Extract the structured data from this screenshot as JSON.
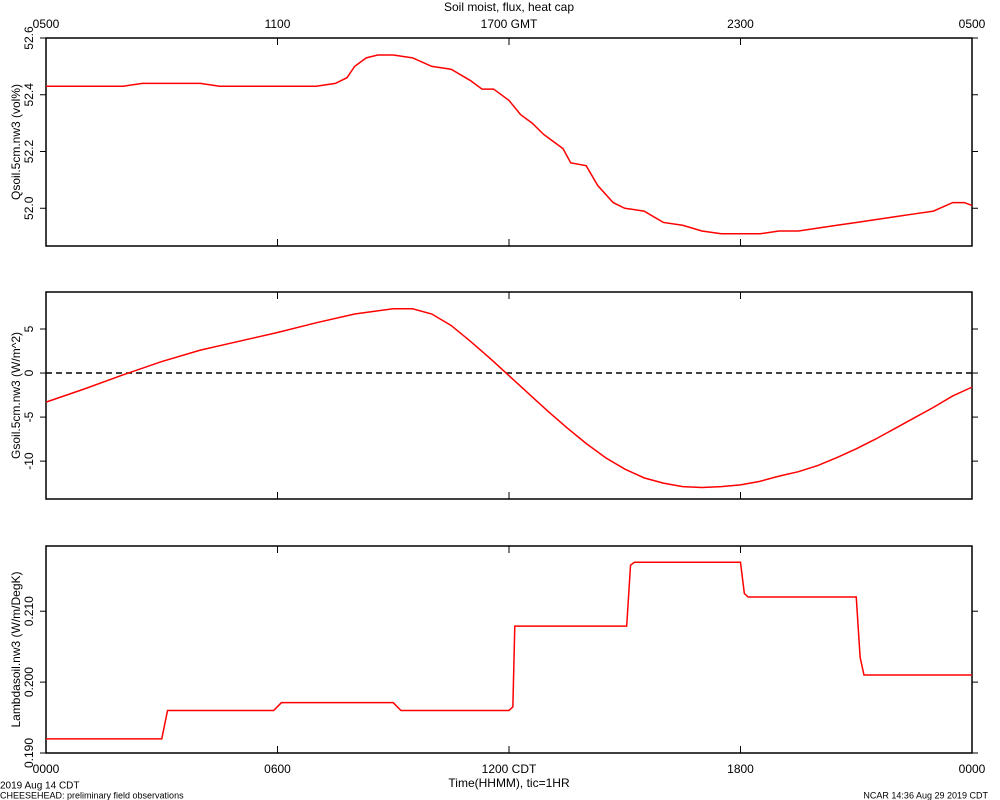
{
  "chart_data": [
    {
      "type": "line",
      "title": "Soil moist, flux, heat cap",
      "ylabel": "Qsoil.5cm.nw3 (vol%)",
      "xlim": [
        0,
        24
      ],
      "x2ticks": [
        {
          "value": 0,
          "label": "0500"
        },
        {
          "value": 6,
          "label": "1100"
        },
        {
          "value": 12,
          "label": "1700 GMT"
        },
        {
          "value": 18,
          "label": "2300"
        },
        {
          "value": 24,
          "label": "0500"
        }
      ],
      "ylim": [
        51.867,
        52.6
      ],
      "yticks": [
        {
          "value": 52,
          "label": "52.0"
        },
        52.2,
        52.4,
        52.6
      ],
      "series": [
        {
          "color": "#ff0000",
          "x": [
            0,
            1,
            2,
            2.5,
            3,
            4,
            4.5,
            5,
            6,
            7,
            7.5,
            7.8,
            8.0,
            8.3,
            8.6,
            9,
            9.5,
            10,
            10.5,
            11,
            11.3,
            11.6,
            12,
            12.3,
            12.6,
            12.9,
            13.1,
            13.4,
            13.6,
            14,
            14.3,
            14.7,
            15,
            15.5,
            16,
            16.5,
            17,
            17.5,
            18,
            18.5,
            19,
            19.5,
            20,
            20.5,
            21,
            21.5,
            22,
            22.5,
            23,
            23.5,
            23.8,
            24
          ],
          "values": [
            52.43,
            52.43,
            52.43,
            52.44,
            52.44,
            52.44,
            52.43,
            52.43,
            52.43,
            52.43,
            52.44,
            52.46,
            52.5,
            52.53,
            52.54,
            52.54,
            52.53,
            52.5,
            52.49,
            52.45,
            52.42,
            52.42,
            52.38,
            52.33,
            52.3,
            52.26,
            52.24,
            52.21,
            52.16,
            52.15,
            52.08,
            52.02,
            52.0,
            51.99,
            51.95,
            51.94,
            51.92,
            51.91,
            51.91,
            51.91,
            51.92,
            51.92,
            51.93,
            51.94,
            51.95,
            51.96,
            51.97,
            51.98,
            51.99,
            52.02,
            52.02,
            52.01
          ]
        }
      ]
    },
    {
      "type": "line",
      "ylabel": "Gsoil.5cm.nw3 (W/m^2)",
      "xlim": [
        0,
        24
      ],
      "ylim": [
        -14.3,
        9.2
      ],
      "yticks": [
        -10,
        -5,
        0,
        5
      ],
      "zero_line": true,
      "series": [
        {
          "color": "#ff0000",
          "x": [
            0,
            1,
            2,
            3,
            4,
            5,
            6,
            7,
            8,
            9,
            9.5,
            10,
            10.5,
            11,
            11.5,
            12,
            12.5,
            13,
            13.5,
            14,
            14.5,
            15,
            15.5,
            16,
            16.5,
            17,
            17.5,
            18,
            18.5,
            19,
            19.5,
            20,
            20.5,
            21,
            21.5,
            22,
            22.5,
            23,
            23.5,
            24
          ],
          "values": [
            -3.3,
            -1.8,
            -0.2,
            1.3,
            2.6,
            3.6,
            4.6,
            5.7,
            6.7,
            7.3,
            7.3,
            6.7,
            5.4,
            3.6,
            1.7,
            -0.3,
            -2.3,
            -4.3,
            -6.2,
            -8.0,
            -9.6,
            -10.9,
            -11.9,
            -12.5,
            -12.9,
            -13.0,
            -12.9,
            -12.7,
            -12.3,
            -11.7,
            -11.2,
            -10.5,
            -9.6,
            -8.6,
            -7.5,
            -6.3,
            -5.1,
            -3.9,
            -2.6,
            -1.6
          ]
        }
      ]
    },
    {
      "type": "line",
      "ylabel": "Lambdasoil.nw3 (W/m/DegK)",
      "xlabel": "Time(HHMM), tic=1HR",
      "xlim": [
        0,
        24
      ],
      "xticks": [
        {
          "value": 0,
          "label": "0000"
        },
        {
          "value": 6,
          "label": "0600"
        },
        {
          "value": 12,
          "label": "1200 CDT"
        },
        {
          "value": 18,
          "label": "1800"
        },
        {
          "value": 24,
          "label": "0000"
        }
      ],
      "ylim": [
        0.19,
        0.2192
      ],
      "yticks": [
        {
          "value": 0.19,
          "label": "0.190"
        },
        {
          "value": 0.2,
          "label": "0.200"
        },
        {
          "value": 0.21,
          "label": "0.210"
        }
      ],
      "series": [
        {
          "color": "#ff0000",
          "x": [
            0,
            3.0,
            3.15,
            5.9,
            6.1,
            9.0,
            9.2,
            12.0,
            12.1,
            12.15,
            15.05,
            15.15,
            15.25,
            18.0,
            18.1,
            18.2,
            21.0,
            21.1,
            21.2,
            24
          ],
          "values": [
            0.192,
            0.192,
            0.196,
            0.196,
            0.1971,
            0.1971,
            0.196,
            0.196,
            0.1965,
            0.2079,
            0.2079,
            0.2165,
            0.2169,
            0.2169,
            0.2125,
            0.212,
            0.212,
            0.2035,
            0.201,
            0.201
          ]
        }
      ]
    }
  ],
  "footer": {
    "date": "2019 Aug 14 CDT",
    "project": "CHEESEHEAD: preliminary field observations",
    "stamp": "NCAR 14:36 Aug 29 2019 CDT"
  }
}
